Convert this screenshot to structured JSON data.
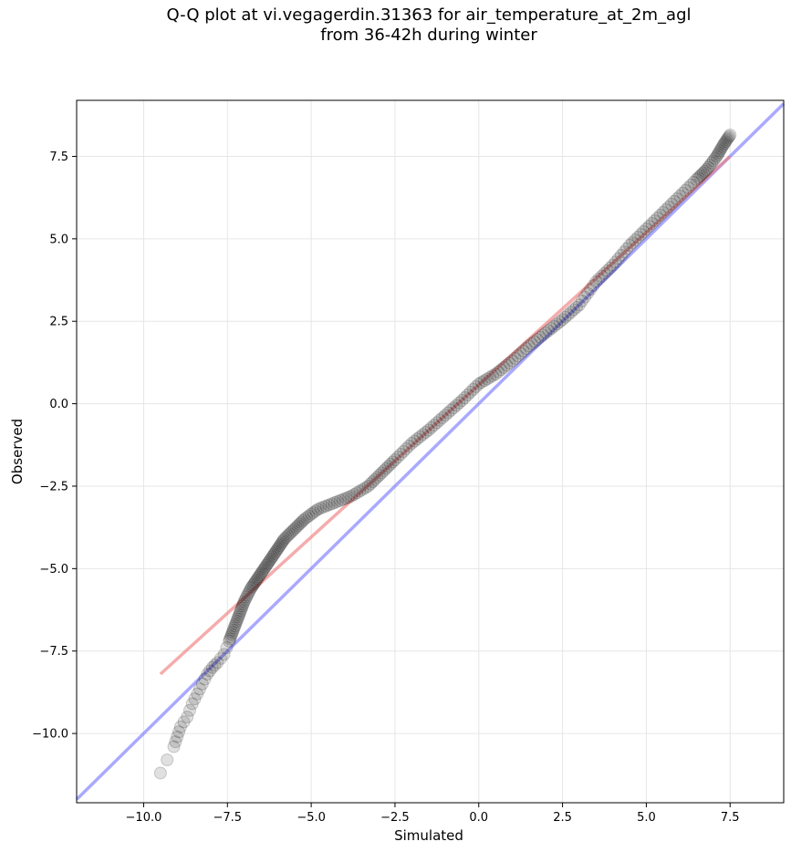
{
  "chart_data": {
    "type": "scatter",
    "title_line1": "Q-Q plot at vi.vegagerdin.31363 for air_temperature_at_2m_agl",
    "title_line2": "from 36-42h during winter",
    "xlabel": "Simulated",
    "ylabel": "Observed",
    "xlim": [
      -12.0,
      9.1
    ],
    "ylim": [
      -12.1,
      9.2
    ],
    "xticks": [
      -10.0,
      -7.5,
      -5.0,
      -2.5,
      0.0,
      2.5,
      5.0,
      7.5
    ],
    "yticks": [
      -10.0,
      -7.5,
      -5.0,
      -2.5,
      0.0,
      2.5,
      5.0,
      7.5
    ],
    "xtick_labels": [
      "−10.0",
      "−7.5",
      "−5.0",
      "−2.5",
      "0.0",
      "2.5",
      "5.0",
      "7.5"
    ],
    "ytick_labels": [
      "−10.0",
      "−7.5",
      "−5.0",
      "−2.5",
      "0.0",
      "2.5",
      "5.0",
      "7.5"
    ],
    "grid": true,
    "colors": {
      "points": "#000000",
      "fit_line": "#f08080",
      "identity_line": "#7b7bff"
    },
    "identity_line": {
      "x": [
        -12.0,
        9.1
      ],
      "y": [
        -12.0,
        9.1
      ]
    },
    "fit_line": {
      "x": [
        -9.5,
        7.5
      ],
      "y": [
        -8.2,
        7.5
      ]
    },
    "quantiles": {
      "x": [
        -9.5,
        -9.1,
        -9.0,
        -8.9,
        -8.7,
        -8.55,
        -8.4,
        -8.25,
        -8.1,
        -7.95,
        -7.8,
        -7.6,
        -7.45,
        -7.3,
        -7.15,
        -7.0,
        -6.8,
        -6.6,
        -6.4,
        -6.2,
        -6.0,
        -5.8,
        -5.5,
        -5.2,
        -4.8,
        -4.3,
        -3.8,
        -3.3,
        -2.9,
        -2.5,
        -2.0,
        -1.5,
        -1.0,
        -0.5,
        0.0,
        0.5,
        1.0,
        1.5,
        2.0,
        2.5,
        3.0,
        3.5,
        4.0,
        4.5,
        5.0,
        5.5,
        6.0,
        6.5,
        6.8,
        7.1,
        7.3,
        7.5
      ],
      "y": [
        -11.2,
        -10.4,
        -10.1,
        -9.8,
        -9.5,
        -9.1,
        -8.8,
        -8.5,
        -8.2,
        -8.0,
        -7.85,
        -7.6,
        -7.2,
        -6.8,
        -6.4,
        -6.0,
        -5.6,
        -5.3,
        -5.0,
        -4.7,
        -4.4,
        -4.1,
        -3.8,
        -3.5,
        -3.2,
        -3.0,
        -2.8,
        -2.5,
        -2.1,
        -1.7,
        -1.2,
        -0.8,
        -0.35,
        0.1,
        0.6,
        0.9,
        1.3,
        1.75,
        2.15,
        2.55,
        3.0,
        3.7,
        4.2,
        4.8,
        5.3,
        5.8,
        6.3,
        6.8,
        7.1,
        7.5,
        7.85,
        8.15
      ]
    }
  }
}
